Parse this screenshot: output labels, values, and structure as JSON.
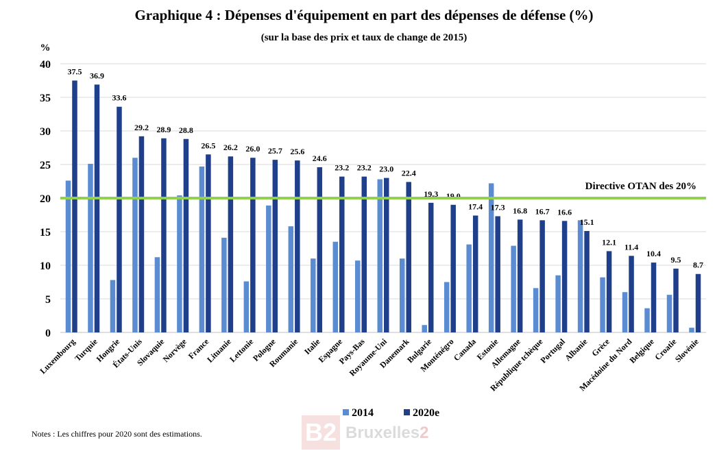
{
  "title": "Graphique 4 : Dépenses d'équipement en part des dépenses de défense (%)",
  "subtitle": "(sur la base des prix et taux de change de 2015)",
  "note": "Notes : Les chiffres pour 2020 sont des estimations.",
  "watermark": {
    "logo": "B2",
    "text_main": "Bruxelles",
    "text_accent": "2"
  },
  "colors": {
    "series_2014": "#5b8cd1",
    "series_2020": "#1f3f8a",
    "threshold_line": "#92d050",
    "grid": "#d9d9d9"
  },
  "chart_data": {
    "type": "bar",
    "title": "Graphique 4 : Dépenses d'équipement en part des dépenses de défense (%)",
    "subtitle": "(sur la base des prix et taux de change de 2015)",
    "ylabel": "%",
    "xlabel": "",
    "ylim": [
      0,
      40
    ],
    "yticks": [
      0,
      5,
      10,
      15,
      20,
      25,
      30,
      35,
      40
    ],
    "grid": true,
    "legend": "bottom-center",
    "categories": [
      "Luxembourg",
      "Turquie",
      "Hongrie",
      "États-Unis",
      "Slovaquie",
      "Norvège",
      "France",
      "Lituanie",
      "Lettonie",
      "Pologne",
      "Roumanie",
      "Italie",
      "Espagne",
      "Pays-Bas",
      "Royaume-Uni",
      "Danemark",
      "Bulgarie",
      "Monténégro",
      "Canada",
      "Estonie",
      "Allemagne",
      "République tchèque",
      "Portugal",
      "Albanie",
      "Grèce",
      "Macédoine du Nord",
      "Belgique",
      "Croatie",
      "Slovénie"
    ],
    "series": [
      {
        "name": "2014",
        "values": [
          22.6,
          25.1,
          7.8,
          26.0,
          11.2,
          20.4,
          24.7,
          14.1,
          7.6,
          18.9,
          15.8,
          11.0,
          13.5,
          10.7,
          22.8,
          11.0,
          1.1,
          7.5,
          13.1,
          22.2,
          12.9,
          6.6,
          8.5,
          16.7,
          8.2,
          6.0,
          3.6,
          5.6,
          0.7
        ]
      },
      {
        "name": "2020e",
        "values": [
          37.5,
          36.9,
          33.6,
          29.2,
          28.9,
          28.8,
          26.5,
          26.2,
          26.0,
          25.7,
          25.6,
          24.6,
          23.2,
          23.2,
          23.0,
          22.4,
          19.3,
          19.0,
          17.4,
          17.3,
          16.8,
          16.7,
          16.6,
          15.1,
          12.1,
          11.4,
          10.4,
          9.5,
          8.7
        ]
      }
    ],
    "data_labels_series": "2020e",
    "data_labels": [
      "37.5",
      "36.9",
      "33.6",
      "29.2",
      "28.9",
      "28.8",
      "26.5",
      "26.2",
      "26.0",
      "25.7",
      "25.6",
      "24.6",
      "23.2",
      "23.2",
      "23.0",
      "22.4",
      "19.3",
      "19.0",
      "17.4",
      "17.3",
      "16.8",
      "16.7",
      "16.6",
      "15.1",
      "12.1",
      "11.4",
      "10.4",
      "9.5",
      "8.7"
    ],
    "reference_line": {
      "value": 20,
      "label": "Directive OTAN des 20%"
    }
  }
}
